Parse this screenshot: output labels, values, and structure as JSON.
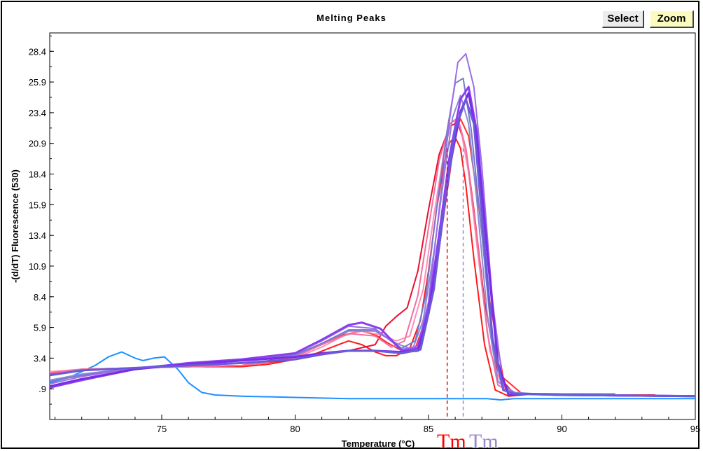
{
  "window": {
    "title": "Melting Peaks",
    "buttons": {
      "select_label": "Select",
      "zoom_label": "Zoom"
    },
    "accent_colors": {
      "zoom_button_bg": "#fbfbc0",
      "frame": "#000000"
    }
  },
  "chart_data": {
    "type": "line",
    "title": "Melting Peaks",
    "xlabel": "Temperature (°C)",
    "ylabel": "-(d/dT) Fluorescence (530)",
    "xlim": [
      70.8,
      95
    ],
    "ylim": [
      -1.6,
      29.9
    ],
    "xticks": [
      75,
      80,
      85,
      90,
      95
    ],
    "xtick_labels": [
      "75",
      "80",
      "85",
      "90",
      "95"
    ],
    "yticks": [
      0.9,
      3.4,
      5.9,
      8.4,
      10.9,
      13.4,
      15.9,
      18.4,
      20.9,
      23.4,
      25.9,
      28.4
    ],
    "ytick_labels": [
      ".9",
      "3.4",
      "5.9",
      "8.4",
      "10.9",
      "13.4",
      "15.9",
      "18.4",
      "20.9",
      "23.4",
      "25.9",
      "28.4"
    ],
    "grid": false,
    "legend": null,
    "markers": [
      {
        "label": "Tm",
        "x": 85.7,
        "color": "#ff0000"
      },
      {
        "label": "Tm",
        "x": 86.3,
        "color": "#9b87cc"
      }
    ],
    "series": [
      {
        "color": "#1e90ff",
        "x": [
          70.8,
          71.5,
          72.5,
          73.0,
          73.5,
          74.0,
          74.3,
          74.7,
          75.1,
          75.6,
          76.0,
          76.5,
          77.0,
          78,
          80,
          82,
          84,
          86,
          86.5,
          87.2,
          87.7,
          88.2,
          89,
          91,
          93,
          95
        ],
        "y": [
          1.4,
          1.8,
          2.8,
          3.5,
          3.9,
          3.4,
          3.2,
          3.4,
          3.5,
          2.5,
          1.4,
          0.6,
          0.4,
          0.3,
          0.2,
          0.1,
          0.1,
          0.1,
          0.1,
          0.1,
          0.0,
          0.1,
          0.1,
          0.1,
          0.1,
          0.1
        ]
      },
      {
        "color": "#ff1a1a",
        "x": [
          70.8,
          72,
          74,
          76,
          78,
          79,
          80,
          80.8,
          81.5,
          82,
          82.5,
          83,
          83.4,
          83.8,
          84.3,
          84.7,
          85.0,
          85.3,
          85.6,
          85.8,
          86.0,
          86.2,
          86.4,
          86.7,
          87.1,
          87.5,
          88,
          89,
          91,
          93.5
        ],
        "y": [
          2.2,
          2.5,
          2.6,
          2.7,
          2.7,
          2.9,
          3.3,
          3.8,
          4.4,
          4.8,
          4.5,
          3.9,
          3.6,
          3.6,
          4.2,
          6.5,
          10.5,
          15.5,
          19.5,
          21.0,
          21.4,
          20.5,
          17.5,
          11.5,
          4.5,
          0.8,
          0.3,
          0.5,
          0.4,
          0.4
        ]
      },
      {
        "color": "#ff3030",
        "x": [
          70.8,
          72,
          74,
          76,
          78,
          80,
          81,
          81.8,
          82.5,
          83,
          83.5,
          84,
          84.5,
          85,
          85.4,
          85.8,
          86.0,
          86.2,
          86.5,
          86.9,
          87.3,
          87.8,
          88.5,
          90,
          92
        ],
        "y": [
          2.1,
          2.4,
          2.6,
          2.7,
          2.8,
          3.6,
          4.5,
          5.3,
          5.6,
          5.3,
          4.6,
          4.0,
          4.2,
          7.2,
          12.5,
          18.5,
          21.8,
          22.9,
          21.5,
          15.5,
          8.0,
          1.8,
          0.5,
          0.4,
          0.4
        ]
      },
      {
        "color": "#e81030",
        "x": [
          70.8,
          72,
          74,
          76,
          78,
          80,
          81,
          82,
          83,
          83.4,
          83.8,
          84.2,
          84.6,
          85.0,
          85.4,
          85.8,
          86.1,
          86.4,
          86.7,
          87.1,
          87.6,
          88.2,
          89.5,
          92
        ],
        "y": [
          2.0,
          2.4,
          2.6,
          2.7,
          2.8,
          3.3,
          3.8,
          4.0,
          4.5,
          6.0,
          6.8,
          7.5,
          10.5,
          15.5,
          20.0,
          22.3,
          22.6,
          20.5,
          15.5,
          8.0,
          2.0,
          0.5,
          0.5,
          0.4
        ]
      },
      {
        "color": "#ff8fb8",
        "x": [
          70.8,
          72,
          74,
          76,
          78,
          80,
          81,
          81.8,
          82.5,
          83.2,
          83.8,
          84.3,
          84.8,
          85.2,
          85.6,
          85.9,
          86.2,
          86.5,
          86.9,
          87.3,
          87.8,
          88.5,
          90,
          92
        ],
        "y": [
          2.3,
          2.5,
          2.6,
          2.7,
          2.8,
          3.4,
          4.3,
          5.2,
          5.6,
          5.3,
          4.8,
          5.2,
          9.0,
          15.0,
          20.5,
          22.8,
          22.2,
          18.5,
          11.0,
          4.0,
          0.8,
          0.5,
          0.4,
          0.4
        ]
      },
      {
        "color": "#f070a0",
        "x": [
          70.8,
          72,
          74,
          76,
          78,
          80,
          81,
          82,
          83,
          83.6,
          84.1,
          84.6,
          85.0,
          85.4,
          85.8,
          86.1,
          86.4,
          86.8,
          87.2,
          87.6,
          88.2,
          90
        ],
        "y": [
          2.2,
          2.5,
          2.6,
          2.7,
          2.8,
          3.5,
          4.5,
          5.4,
          5.2,
          4.3,
          4.8,
          8.5,
          14.0,
          19.5,
          22.5,
          23.0,
          20.5,
          13.5,
          5.5,
          1.2,
          0.5,
          0.4
        ]
      },
      {
        "color": "#8a8ad8",
        "x": [
          70.8,
          72,
          74,
          76,
          78,
          80,
          81,
          82,
          83,
          83.8,
          84.4,
          84.8,
          85.2,
          85.6,
          85.9,
          86.2,
          86.5,
          86.8,
          87.2,
          87.6,
          88.1,
          89,
          92
        ],
        "y": [
          1.6,
          2.1,
          2.6,
          2.9,
          3.2,
          3.6,
          4.6,
          5.6,
          5.6,
          4.6,
          4.1,
          6.5,
          12.0,
          18.5,
          23.0,
          24.8,
          22.5,
          16.5,
          7.0,
          1.5,
          0.6,
          0.5,
          0.5
        ]
      },
      {
        "color": "#7878cc",
        "x": [
          70.8,
          72,
          74,
          76,
          78,
          80,
          81,
          82,
          83,
          84,
          84.5,
          84.9,
          85.3,
          85.7,
          86.0,
          86.3,
          86.6,
          87.0,
          87.4,
          87.8,
          88.4,
          90
        ],
        "y": [
          1.5,
          2.0,
          2.6,
          2.9,
          3.2,
          3.7,
          4.6,
          5.7,
          5.7,
          4.2,
          4.8,
          8.5,
          15.5,
          22.0,
          25.8,
          26.2,
          22.0,
          13.5,
          4.5,
          0.8,
          0.5,
          0.4
        ]
      },
      {
        "color": "#9a6ee6",
        "x": [
          70.8,
          72,
          74,
          76,
          78,
          80,
          81,
          82,
          83,
          84,
          84.6,
          85.0,
          85.4,
          85.8,
          86.1,
          86.4,
          86.7,
          87.0,
          87.4,
          87.8,
          88.3,
          90,
          95
        ],
        "y": [
          1.3,
          1.9,
          2.6,
          3.0,
          3.3,
          3.8,
          4.8,
          6.0,
          5.8,
          4.1,
          4.4,
          8.0,
          15.5,
          23.0,
          27.5,
          28.2,
          25.5,
          19.0,
          8.0,
          1.2,
          0.5,
          0.4,
          0.3
        ]
      },
      {
        "color": "#8b3ff0",
        "x": [
          70.8,
          72,
          74,
          76,
          78,
          80,
          81,
          82,
          82.5,
          83.2,
          84,
          84.6,
          85.0,
          85.4,
          85.8,
          86.2,
          86.5,
          86.8,
          87.2,
          87.6,
          88,
          88.5,
          90,
          95
        ],
        "y": [
          1.0,
          1.6,
          2.5,
          3.0,
          3.3,
          3.8,
          4.9,
          6.1,
          6.3,
          5.8,
          4.0,
          4.2,
          7.5,
          13.5,
          20.0,
          24.5,
          25.5,
          22.0,
          12.5,
          3.0,
          0.4,
          0.5,
          0.4,
          0.3
        ]
      },
      {
        "color": "#7a2ce6",
        "x": [
          70.8,
          72,
          74,
          76,
          78,
          80,
          81,
          82,
          83,
          84,
          84.6,
          85.0,
          85.4,
          85.8,
          86.2,
          86.5,
          86.8,
          87.2,
          87.6,
          88,
          88.5,
          90,
          95
        ],
        "y": [
          1.1,
          1.7,
          2.5,
          2.9,
          3.2,
          3.5,
          3.8,
          4.0,
          4.0,
          3.9,
          4.0,
          7.0,
          12.5,
          19.0,
          23.5,
          25.0,
          21.5,
          12.0,
          3.0,
          0.4,
          0.5,
          0.4,
          0.3
        ]
      },
      {
        "color": "#6a5ad8",
        "x": [
          70.8,
          72,
          74,
          76,
          78,
          80,
          81,
          82,
          83,
          84,
          84.7,
          85.2,
          85.6,
          86.0,
          86.4,
          86.7,
          87.0,
          87.4,
          87.8,
          88.2,
          90,
          95
        ],
        "y": [
          2.0,
          2.4,
          2.6,
          2.8,
          3.0,
          3.3,
          3.7,
          4.0,
          4.0,
          3.8,
          4.1,
          9.0,
          16.0,
          22.0,
          24.5,
          22.5,
          15.0,
          5.0,
          0.8,
          0.5,
          0.4,
          0.3
        ]
      }
    ]
  }
}
